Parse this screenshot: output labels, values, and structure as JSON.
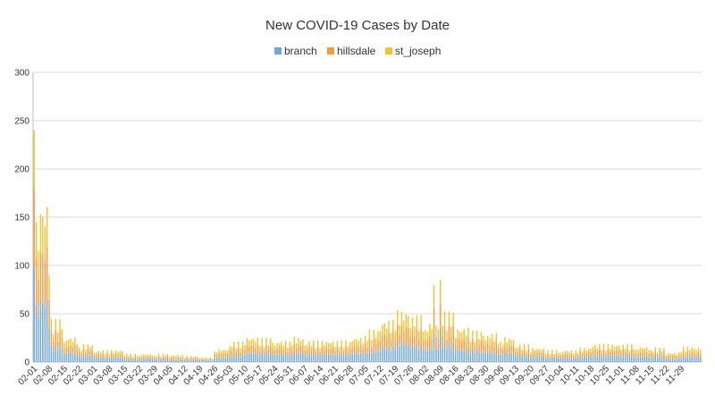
{
  "chart_data": {
    "type": "bar",
    "stacked": true,
    "title": "New COVID-19 Cases by Date",
    "legend": {
      "position": "top",
      "items": [
        {
          "name": "branch",
          "color": "#6fa8dc"
        },
        {
          "name": "hillsdale",
          "color": "#f59c3c"
        },
        {
          "name": "st_joseph",
          "color": "#f4c430"
        }
      ]
    },
    "ylim": [
      0,
      300
    ],
    "yticks": [
      "0",
      "50",
      "100",
      "150",
      "200",
      "250",
      "300"
    ],
    "grid": true,
    "xtick_labels": [
      "02-01",
      "02-08",
      "02-15",
      "02-22",
      "03-01",
      "03-08",
      "03-15",
      "03-22",
      "03-29",
      "04-05",
      "04-12",
      "04-19",
      "04-26",
      "05-03",
      "05-10",
      "05-17",
      "05-24",
      "05-31",
      "06-07",
      "06-14",
      "06-21",
      "06-28",
      "07-05",
      "07-12",
      "07-19",
      "07-26",
      "08-02",
      "08-09",
      "08-16",
      "08-23",
      "08-30",
      "09-06",
      "09-13",
      "09-20",
      "09-27",
      "10-04",
      "10-11",
      "10-18",
      "10-25",
      "11-01",
      "11-08",
      "11-15",
      "11-22",
      "11-29"
    ],
    "weekly_series": [
      {
        "name": "branch",
        "values": [
          55,
          14,
          8,
          6,
          4,
          4,
          3,
          3,
          3,
          2,
          2,
          2,
          4,
          6,
          8,
          8,
          7,
          8,
          7,
          7,
          7,
          8,
          10,
          13,
          17,
          15,
          12,
          16,
          11,
          10,
          9,
          8,
          6,
          5,
          4,
          4,
          5,
          6,
          6,
          6,
          5,
          5,
          3,
          5
        ]
      },
      {
        "name": "hillsdale",
        "values": [
          45,
          12,
          7,
          5,
          3,
          3,
          2,
          2,
          2,
          2,
          2,
          1,
          4,
          6,
          7,
          6,
          6,
          7,
          6,
          6,
          6,
          7,
          9,
          12,
          14,
          13,
          11,
          14,
          10,
          9,
          8,
          7,
          5,
          4,
          3,
          3,
          4,
          5,
          5,
          5,
          4,
          4,
          3,
          4
        ]
      },
      {
        "name": "st_joseph",
        "values": [
          35,
          10,
          6,
          4,
          3,
          3,
          2,
          2,
          2,
          2,
          1,
          1,
          3,
          5,
          6,
          6,
          5,
          6,
          5,
          5,
          5,
          6,
          8,
          10,
          12,
          11,
          10,
          12,
          8,
          7,
          7,
          6,
          4,
          3,
          3,
          3,
          3,
          4,
          4,
          4,
          4,
          3,
          2,
          4
        ]
      }
    ],
    "peaks": [
      {
        "date": "02-01",
        "total": 240
      },
      {
        "date": "02-02",
        "total": 145
      },
      {
        "date": "02-03",
        "total": 115
      },
      {
        "date": "02-08",
        "total": 90
      },
      {
        "date": "08-06",
        "total": 80
      },
      {
        "date": "08-09",
        "total": 85
      }
    ]
  }
}
